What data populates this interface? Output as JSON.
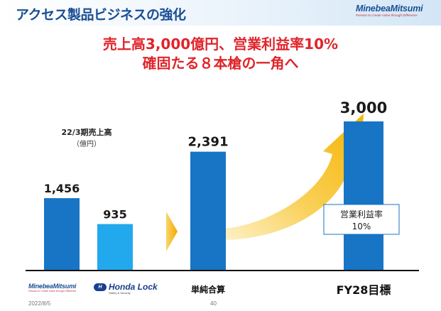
{
  "header": {
    "title": "アクセス製品ビジネスの強化",
    "logo_name": "MinebeaMitsumi",
    "logo_tagline": "Passion to Create Value through Difference"
  },
  "headline": {
    "line1": "売上高3,000億円、営業利益率10%",
    "line2": "確固たる８本槍の一角へ"
  },
  "sales_label": "22/3期売上高",
  "unit_label": "（億円）",
  "chart_data": {
    "type": "bar",
    "categories": [
      "MinebeaMitsumi",
      "Honda Lock",
      "単純合算",
      "FY28目標"
    ],
    "values": [
      1456,
      935,
      2391,
      3000
    ],
    "value_labels": [
      "1,456",
      "935",
      "2,391",
      "3,000"
    ],
    "colors": [
      "#1874c4",
      "#22a8ec",
      "#1874c4",
      "#1874c4"
    ],
    "ylim": [
      0,
      3300
    ],
    "annotation": {
      "line1": "営業利益率",
      "line2": "10%"
    },
    "xtick_labels": {
      "combined": "単純合算",
      "target": "FY28目標"
    },
    "accent_colors": {
      "arrow": "#f5b800",
      "arrow_light": "#fde7a0",
      "headline": "#e0242a"
    }
  },
  "bottom_logos": {
    "minebea": {
      "name": "MinebeaMitsumi",
      "tagline": "Passion to Create Value through Difference"
    },
    "honda": {
      "badge": "H",
      "name": "Honda Lock",
      "sub": "Safety & Security"
    }
  },
  "footer": {
    "date": "2022/8/5",
    "page": "40"
  }
}
